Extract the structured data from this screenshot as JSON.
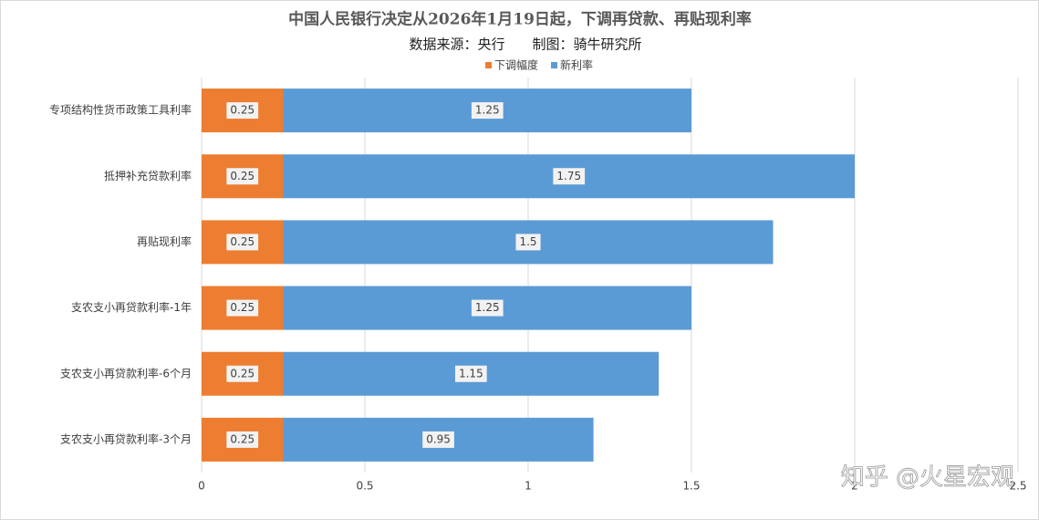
{
  "chart_data": {
    "type": "stacked-bar-horizontal",
    "title": "中国人民银行决定从2026年1月19日起，下调再贷款、再贴现利率",
    "subtitle": "数据来源：央行　　制图：骑牛研究所",
    "categories": [
      "专项结构性货币政策工具利率",
      "抵押补充贷款利率",
      "再贴现利率",
      "支农支小再贷款利率-1年",
      "支农支小再贷款利率-6个月",
      "支农支小再贷款利率-3个月"
    ],
    "series": [
      {
        "name": "下调幅度",
        "color": "#ed7d31",
        "values": [
          0.25,
          0.25,
          0.25,
          0.25,
          0.25,
          0.25
        ]
      },
      {
        "name": "新利率",
        "color": "#5b9bd5",
        "values": [
          1.25,
          1.75,
          1.5,
          1.25,
          1.15,
          0.95
        ]
      }
    ],
    "xlim": [
      0,
      2.5
    ],
    "xticks": [
      0,
      0.5,
      1,
      1.5,
      2,
      2.5
    ],
    "grid": true,
    "legend": "top",
    "watermark": "知乎 @火星宏观"
  }
}
